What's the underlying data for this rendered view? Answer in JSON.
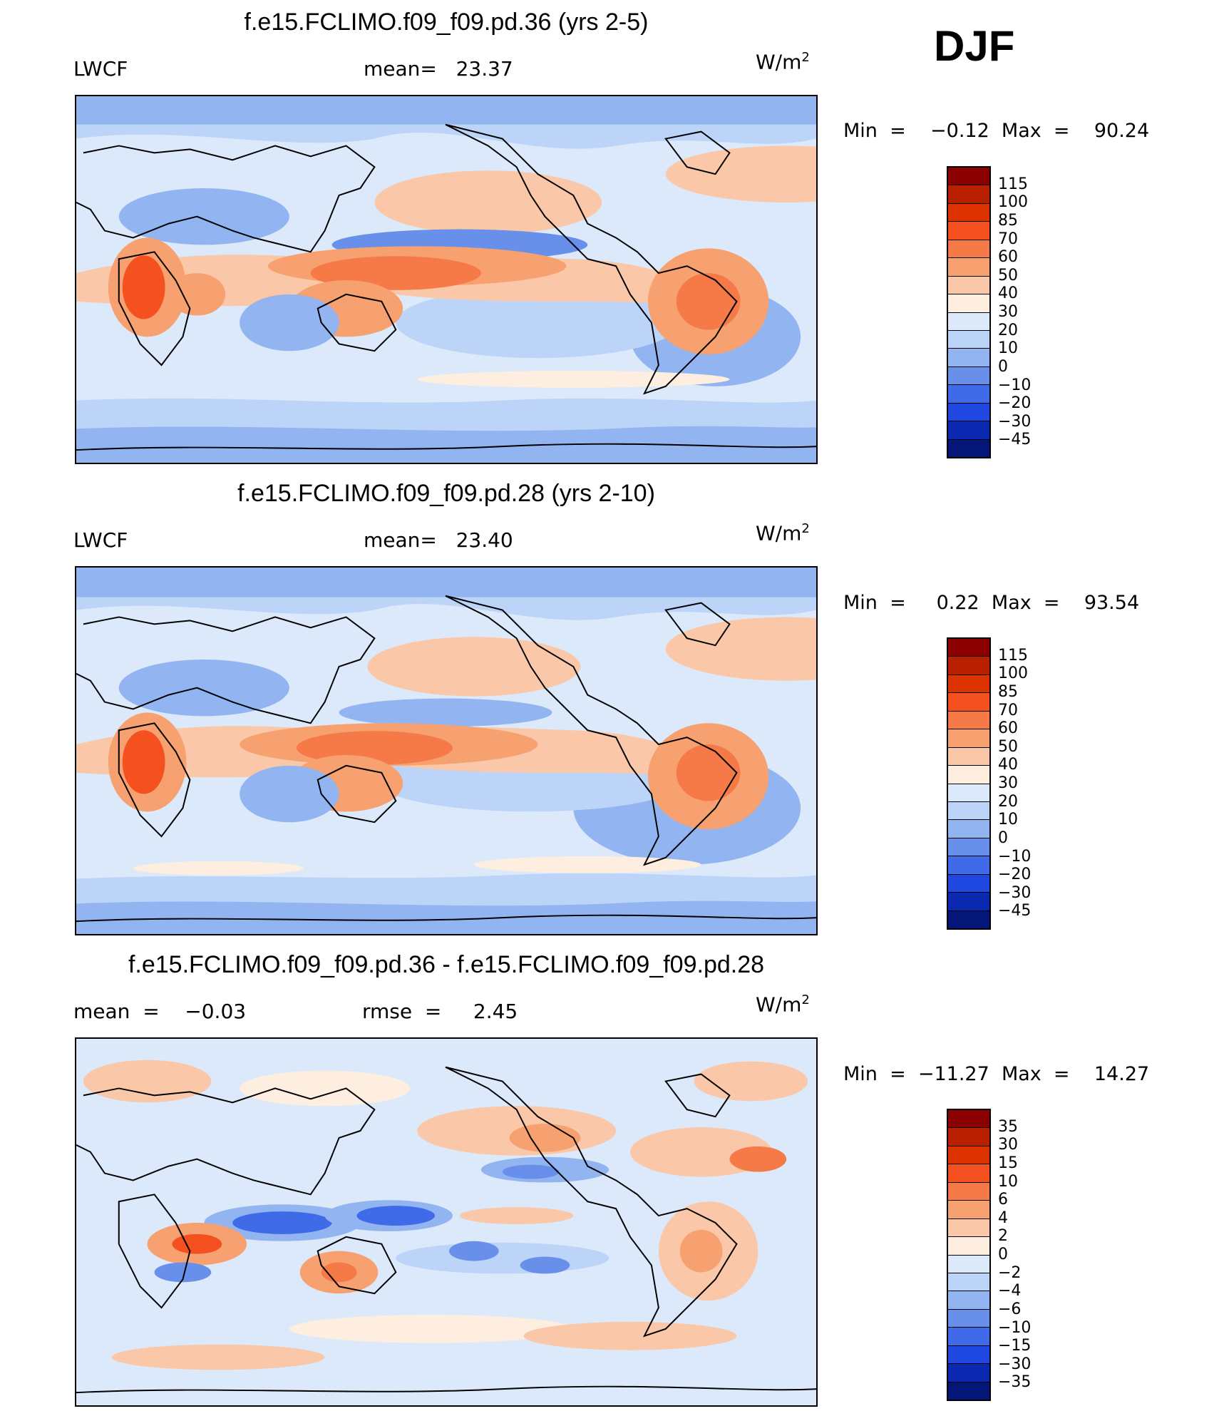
{
  "season": "DJF",
  "chart_data": [
    {
      "type": "heatmap",
      "title": "f.e15.FCLIMO.f09_f09.pd.36 (yrs 2-5)",
      "left_label": "LWCF",
      "center_label": "mean=   23.37",
      "units_label": "W/m",
      "units_exp": "2",
      "stats": "Min  =    −0.12  Max  =    90.24",
      "mean": 23.37,
      "min": -0.12,
      "max": 90.24,
      "colorbar": {
        "ticks": [
          "115",
          "100",
          "85",
          "70",
          "60",
          "50",
          "40",
          "30",
          "20",
          "10",
          "0",
          "−10",
          "−20",
          "−30",
          "−45"
        ],
        "colors": [
          "#8b0000",
          "#b82000",
          "#dd3300",
          "#f45020",
          "#f57a48",
          "#f7a070",
          "#fac8a8",
          "#fdeee0",
          "#dce9fa",
          "#bcd4f8",
          "#92b4f0",
          "#6890ea",
          "#3f6ae8",
          "#1f48e0",
          "#0a28b0",
          "#041678"
        ]
      }
    },
    {
      "type": "heatmap",
      "title": "f.e15.FCLIMO.f09_f09.pd.28 (yrs 2-10)",
      "left_label": "LWCF",
      "center_label": "mean=   23.40",
      "units_label": "W/m",
      "units_exp": "2",
      "stats": "Min  =     0.22  Max  =    93.54",
      "mean": 23.4,
      "min": 0.22,
      "max": 93.54,
      "colorbar": {
        "ticks": [
          "115",
          "100",
          "85",
          "70",
          "60",
          "50",
          "40",
          "30",
          "20",
          "10",
          "0",
          "−10",
          "−20",
          "−30",
          "−45"
        ],
        "colors": [
          "#8b0000",
          "#b82000",
          "#dd3300",
          "#f45020",
          "#f57a48",
          "#f7a070",
          "#fac8a8",
          "#fdeee0",
          "#dce9fa",
          "#bcd4f8",
          "#92b4f0",
          "#6890ea",
          "#3f6ae8",
          "#1f48e0",
          "#0a28b0",
          "#041678"
        ]
      }
    },
    {
      "type": "heatmap",
      "title": "f.e15.FCLIMO.f09_f09.pd.36 - f.e15.FCLIMO.f09_f09.pd.28",
      "left_label": "mean  =    −0.03",
      "center_label": "rmse  =     2.45",
      "units_label": "W/m",
      "units_exp": "2",
      "stats": "Min  =  −11.27  Max  =    14.27",
      "mean": -0.03,
      "rmse": 2.45,
      "min": -11.27,
      "max": 14.27,
      "colorbar": {
        "ticks": [
          "35",
          "30",
          "15",
          "10",
          "6",
          "4",
          "2",
          "0",
          "−2",
          "−4",
          "−6",
          "−10",
          "−15",
          "−30",
          "−35"
        ],
        "colors": [
          "#8b0000",
          "#b82000",
          "#dd3300",
          "#f45020",
          "#f57a48",
          "#f7a070",
          "#fac8a8",
          "#fdeee0",
          "#dce9fa",
          "#bcd4f8",
          "#92b4f0",
          "#6890ea",
          "#3f6ae8",
          "#1f48e0",
          "#0a28b0",
          "#041678"
        ]
      }
    }
  ]
}
